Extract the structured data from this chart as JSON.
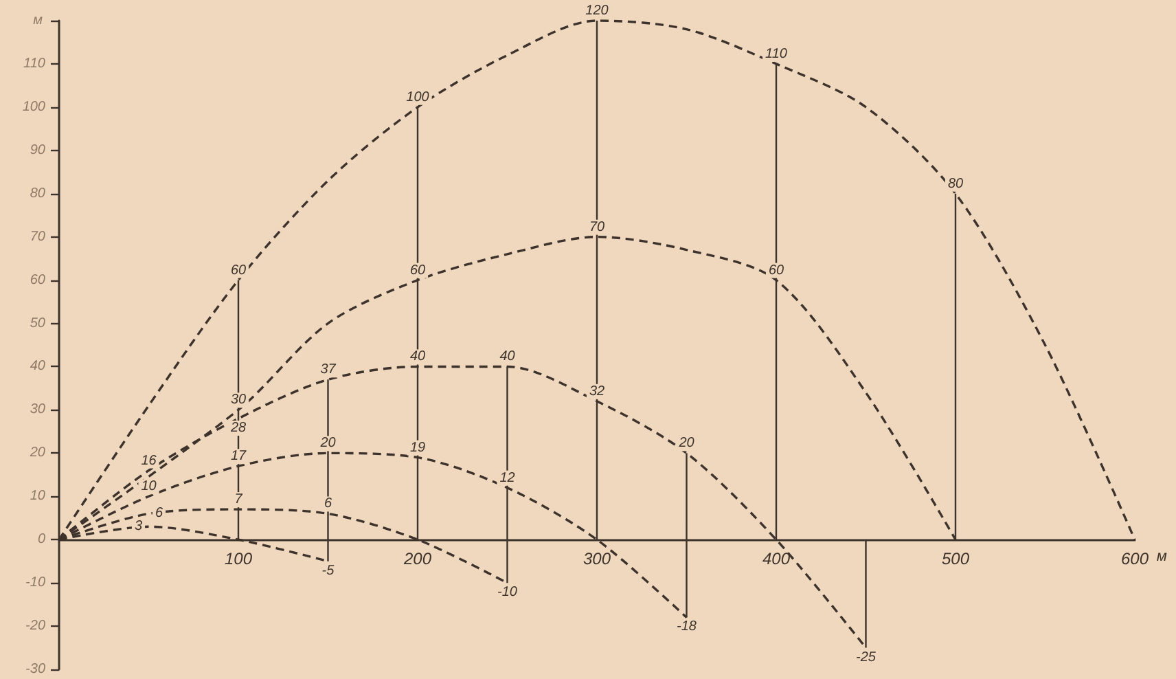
{
  "chart_data": {
    "type": "line",
    "xlabel": "м",
    "ylabel": "м",
    "xlim": [
      0,
      600
    ],
    "xticks": [
      100,
      200,
      300,
      400,
      500,
      600
    ],
    "ylim": [
      -30,
      120
    ],
    "yticks": [
      -30,
      -20,
      -10,
      0,
      10,
      20,
      30,
      40,
      50,
      60,
      70,
      80,
      90,
      100,
      110,
      {
        "value": 120,
        "label": null
      }
    ],
    "marker": "none",
    "line_style": "dashed",
    "series": [
      {
        "color": "#3d332c",
        "x": [
          0,
          50,
          100,
          150
        ],
        "values": [
          0,
          3,
          0,
          -5
        ],
        "value_labels": [
          null,
          "3",
          null,
          "-5"
        ]
      },
      {
        "color": "#3d332c",
        "x": [
          0,
          50,
          100,
          150,
          200,
          250
        ],
        "values": [
          0,
          6,
          7,
          6,
          0,
          -10
        ],
        "value_labels": [
          null,
          "6",
          "7",
          "6",
          null,
          "-10"
        ]
      },
      {
        "color": "#3d332c",
        "x": [
          0,
          50,
          100,
          150,
          200,
          250,
          300,
          350
        ],
        "values": [
          0,
          10,
          17,
          20,
          19,
          12,
          0,
          -18
        ],
        "value_labels": [
          null,
          "10",
          "17",
          "20",
          "19",
          "12",
          null,
          "-18"
        ]
      },
      {
        "color": "#3d332c",
        "x": [
          0,
          50,
          100,
          150,
          200,
          250,
          300,
          350,
          400,
          450
        ],
        "values": [
          0,
          16,
          28,
          37,
          40,
          40,
          32,
          20,
          0,
          -25
        ],
        "value_labels": [
          null,
          "16",
          "28",
          "37",
          "40",
          "40",
          "32",
          "20",
          null,
          "-25"
        ]
      },
      {
        "color": "#3d332c",
        "x": [
          0,
          100,
          150,
          200,
          250,
          300,
          350,
          400,
          450,
          500
        ],
        "values": [
          0,
          30,
          50,
          60,
          66,
          70,
          67,
          60,
          34,
          0
        ],
        "value_labels": [
          null,
          "30",
          null,
          "60",
          null,
          "70",
          null,
          "60",
          null,
          null
        ]
      },
      {
        "color": "#3d332c",
        "x": [
          0,
          50,
          100,
          150,
          200,
          250,
          300,
          350,
          400,
          450,
          500,
          550,
          600
        ],
        "values": [
          0,
          31,
          60,
          83,
          100,
          112,
          120,
          118,
          110,
          100,
          80,
          45,
          0
        ],
        "value_labels": [
          null,
          null,
          "60",
          null,
          "100",
          null,
          "120",
          null,
          "110",
          null,
          "80",
          null,
          null
        ]
      },
      {
        "color": "#3d332c",
        "line_style": "solid",
        "x": [
          100,
          100
        ],
        "values": [
          0,
          60
        ]
      },
      {
        "color": "#3d332c",
        "line_style": "solid",
        "x": [
          150,
          150
        ],
        "values": [
          -5,
          37
        ]
      },
      {
        "color": "#3d332c",
        "line_style": "solid",
        "x": [
          200,
          200
        ],
        "values": [
          0,
          100
        ]
      },
      {
        "color": "#3d332c",
        "line_style": "solid",
        "x": [
          250,
          250
        ],
        "values": [
          -10,
          40
        ]
      },
      {
        "color": "#3d332c",
        "line_style": "solid",
        "x": [
          300,
          300
        ],
        "values": [
          0,
          120
        ]
      },
      {
        "color": "#3d332c",
        "line_style": "solid",
        "x": [
          350,
          350
        ],
        "values": [
          -18,
          20
        ]
      },
      {
        "color": "#3d332c",
        "line_style": "solid",
        "x": [
          400,
          400
        ],
        "values": [
          0,
          110
        ]
      },
      {
        "color": "#3d332c",
        "line_style": "solid",
        "x": [
          450,
          450
        ],
        "values": [
          -25,
          0
        ]
      },
      {
        "color": "#3d332c",
        "line_style": "solid",
        "x": [
          500,
          500
        ],
        "values": [
          0,
          80
        ]
      }
    ]
  }
}
